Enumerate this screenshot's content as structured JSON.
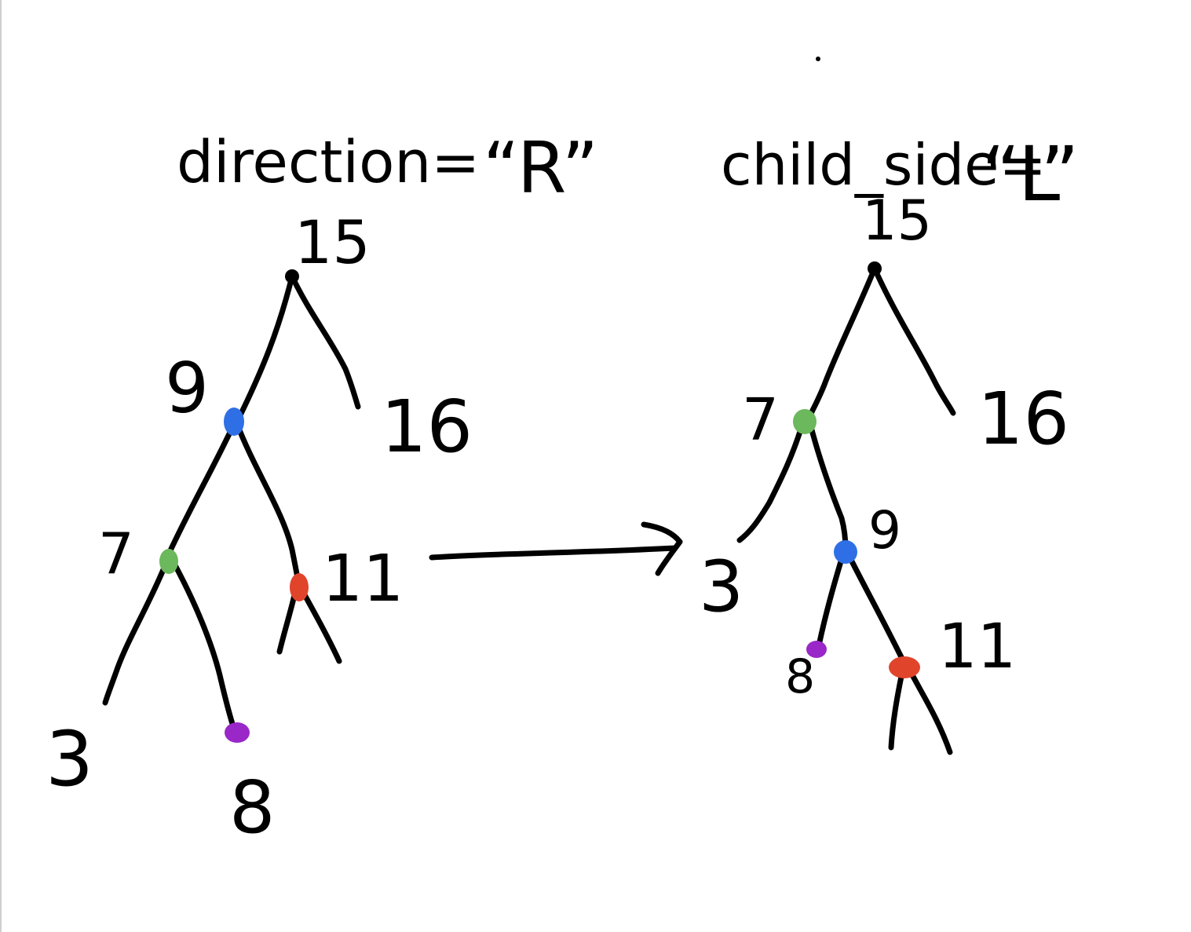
{
  "labels": {
    "direction_text": "direction=",
    "direction_value": "“R”",
    "child_side_text": "child_side=",
    "child_side_value": "“L”"
  },
  "colors": {
    "blue": "#2f6fe6",
    "green": "#6cb85c",
    "red": "#e0452c",
    "purple": "#9a27c7",
    "black": "#000000"
  },
  "trees": {
    "before": {
      "root": "15",
      "root_right": "16",
      "blue_node": "9",
      "green_node": "7",
      "green_left": "3",
      "purple_node": "8",
      "red_node": "11"
    },
    "after": {
      "root": "15",
      "root_right": "16",
      "green_node": "7",
      "green_left": "3",
      "blue_node": "9",
      "purple_node": "8",
      "red_node": "11"
    }
  }
}
